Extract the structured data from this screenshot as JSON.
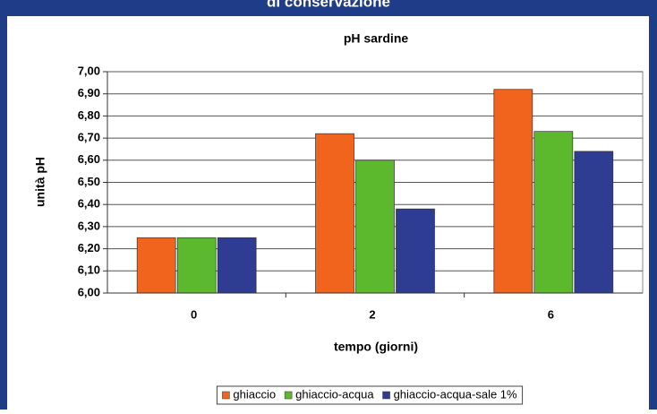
{
  "header": "di conservazione",
  "chart_data": {
    "type": "bar",
    "title": "pH sardine",
    "x_label": "tempo (giorni)",
    "y_label": "unità pH",
    "categories": [
      "0",
      "2",
      "6"
    ],
    "series": [
      {
        "name": "ghiaccio",
        "color": "#f0641e",
        "values": [
          6.25,
          6.72,
          6.92
        ]
      },
      {
        "name": "ghiaccio-acqua",
        "color": "#5cb82c",
        "values": [
          6.25,
          6.6,
          6.73
        ]
      },
      {
        "name": "ghiaccio-acqua-sale 1%",
        "color": "#2e3d91",
        "values": [
          6.25,
          6.38,
          6.64
        ]
      }
    ],
    "ylim": [
      6.0,
      7.0
    ],
    "yticks": [
      {
        "value": 6.0,
        "label": "6,00"
      },
      {
        "value": 6.1,
        "label": "6,10"
      },
      {
        "value": 6.2,
        "label": "6,20"
      },
      {
        "value": 6.3,
        "label": "6,30"
      },
      {
        "value": 6.4,
        "label": "6,40"
      },
      {
        "value": 6.5,
        "label": "6,50"
      },
      {
        "value": 6.6,
        "label": "6,60"
      },
      {
        "value": 6.7,
        "label": "6,70"
      },
      {
        "value": 6.8,
        "label": "6,80"
      },
      {
        "value": 6.9,
        "label": "6,90"
      },
      {
        "value": 7.0,
        "label": "7,00"
      }
    ],
    "grid": true,
    "legend": "bottom"
  }
}
